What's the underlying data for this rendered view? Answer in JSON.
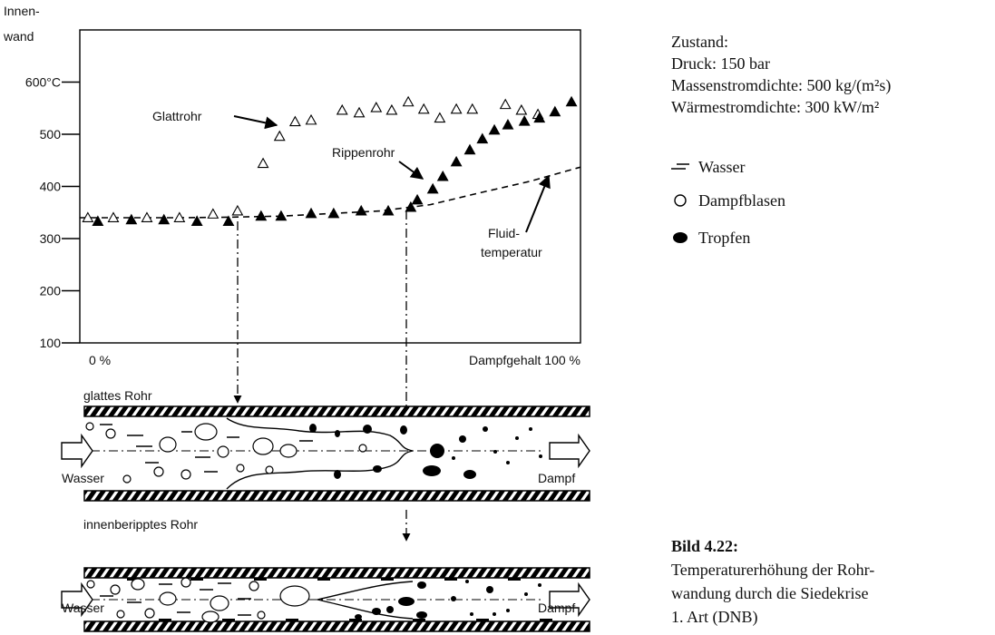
{
  "chart_data": {
    "type": "scatter",
    "ylabel": [
      "Innen-",
      "wand"
    ],
    "xlim": [
      0,
      100
    ],
    "ylim": [
      100,
      700
    ],
    "xticks": [
      {
        "value": 0,
        "label": "0 %"
      },
      {
        "value": 100,
        "label": "Dampfgehalt 100 %"
      }
    ],
    "yticks": [
      100,
      200,
      300,
      400,
      500,
      {
        "value": 600,
        "label": "600°C"
      }
    ],
    "grid": false,
    "series": [
      {
        "name": "Glattrohr",
        "color": "#000000",
        "filled": false,
        "x": [
          1.6,
          6.7,
          13.4,
          19.9,
          26.6,
          31.5,
          36.6,
          39.9,
          43,
          46.2,
          52.4,
          55.8,
          59.2,
          62.3,
          65.6,
          68.7,
          71.9,
          75.2,
          78.4,
          85,
          88.2,
          91.5
        ],
        "values": [
          340,
          340,
          340,
          340,
          347,
          353,
          444,
          496,
          524,
          527,
          546,
          541,
          551,
          546,
          562,
          548,
          531,
          548,
          548,
          557,
          546,
          538
        ]
      },
      {
        "name": "Rippenrohr",
        "color": "#000000",
        "filled": true,
        "x": [
          3.6,
          10.3,
          16.8,
          23.4,
          29.7,
          36.2,
          40.2,
          46.2,
          50.7,
          56.2,
          61.6,
          66.1,
          67.4,
          70.5,
          72.5,
          75.2,
          77.9,
          80.4,
          82.8,
          85.5,
          88.8,
          91.8,
          94.9,
          98.2
        ],
        "values": [
          333,
          336,
          336,
          333,
          333,
          343,
          343,
          348,
          348,
          353,
          353,
          360,
          374,
          395,
          419,
          447,
          470,
          491,
          508,
          518,
          525,
          531,
          543,
          562
        ]
      }
    ],
    "fluid_temperature": {
      "label": [
        "Fluid-",
        "temperatur"
      ],
      "color": "#000000",
      "x": [
        0,
        10,
        20,
        30,
        40,
        50,
        60,
        70,
        80,
        90,
        100
      ],
      "values": [
        340,
        340,
        340,
        341,
        343,
        348,
        353,
        365,
        388,
        410,
        437
      ]
    }
  },
  "conditions": {
    "title": "Zustand:",
    "lines": [
      "Druck: 150 bar",
      "Massenstromdichte: 500 kg/(m²s)",
      "Wärmestromdichte: 300 kW/m²"
    ]
  },
  "legend": [
    "Wasser",
    "Dampfblasen",
    "Tropfen"
  ],
  "diagram": {
    "tube_1": {
      "label": "glattes Rohr",
      "inlet": "Wasser",
      "outlet": "Dampf"
    },
    "tube_2": {
      "label": "innenberipptes Rohr",
      "inlet": "Wasser",
      "outlet": "Dampf"
    }
  },
  "caption": {
    "label": "Bild 4.22:",
    "lines": [
      "Temperaturerhöhung der Rohr-",
      "wandung durch die Siedekrise",
      "1. Art (DNB)"
    ]
  }
}
